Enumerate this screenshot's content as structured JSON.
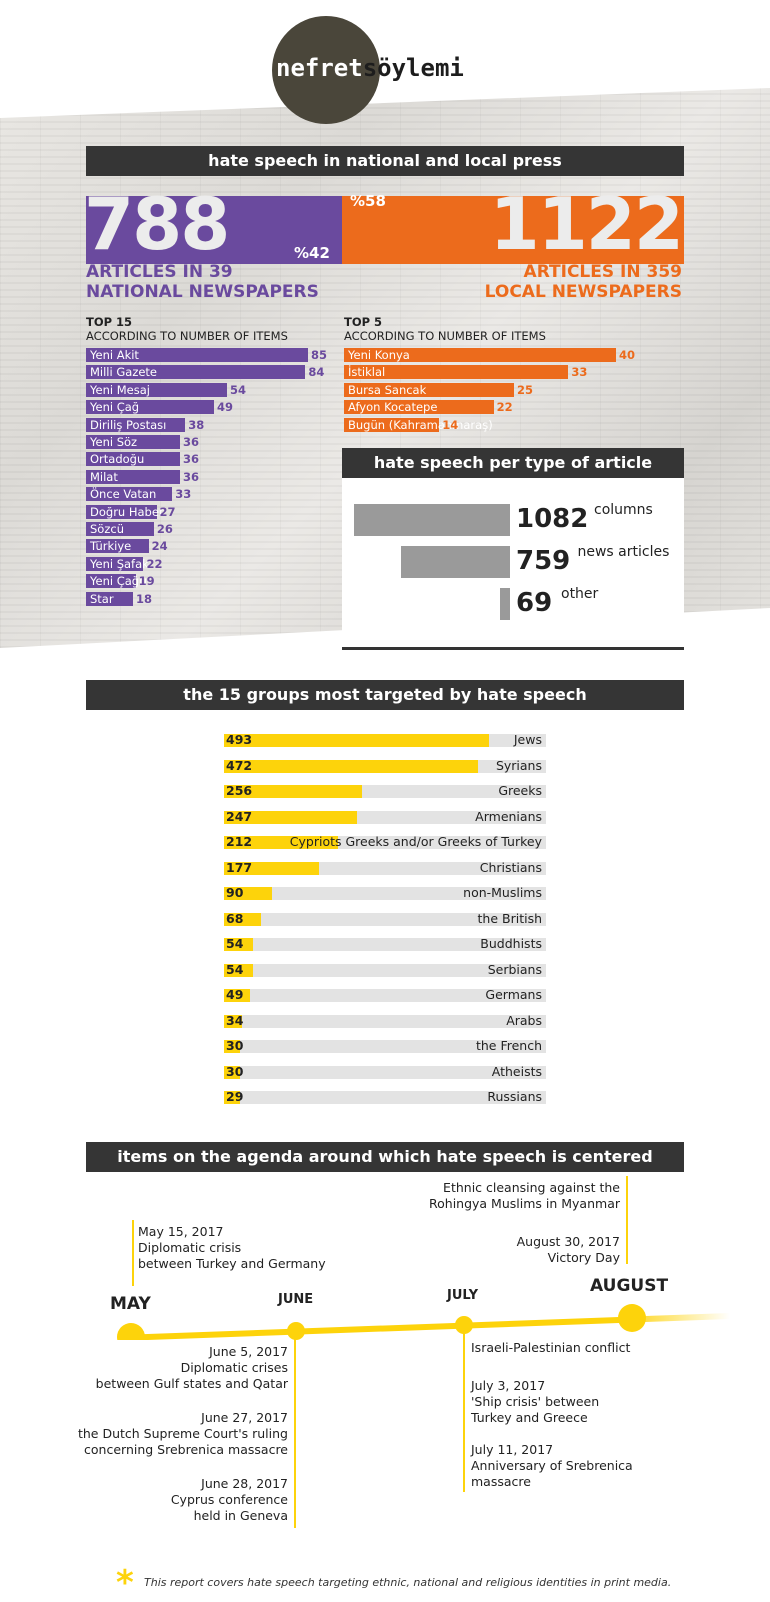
{
  "logo": {
    "part1": "nefret",
    "part2": "söylemi"
  },
  "section1": {
    "title": "hate speech in national and local press",
    "national": {
      "count": "788",
      "percent": "%42",
      "subtitle_line1": "ARTICLES IN 39",
      "subtitle_line2": "NATIONAL NEWSPAPERS",
      "top_label": "TOP 15",
      "top_sub": "ACCORDING TO NUMBER OF ITEMS",
      "items": [
        {
          "name": "Yeni Akit",
          "value": "85",
          "n": 85
        },
        {
          "name": "Milli Gazete",
          "value": "84",
          "n": 84
        },
        {
          "name": "Yeni Mesaj",
          "value": "54",
          "n": 54
        },
        {
          "name": "Yeni Çağ",
          "value": "49",
          "n": 49
        },
        {
          "name": "Diriliş Postası",
          "value": "38",
          "n": 38
        },
        {
          "name": "Yeni Söz",
          "value": "36",
          "n": 36
        },
        {
          "name": "Ortadoğu",
          "value": "36",
          "n": 36
        },
        {
          "name": "Milat",
          "value": "36",
          "n": 36
        },
        {
          "name": "Önce Vatan",
          "value": "33",
          "n": 33
        },
        {
          "name": "Doğru Haber",
          "value": "27",
          "n": 27
        },
        {
          "name": "Sözcü",
          "value": "26",
          "n": 26
        },
        {
          "name": "Türkiye",
          "value": "24",
          "n": 24
        },
        {
          "name": "Yeni Şafak",
          "value": "22",
          "n": 22
        },
        {
          "name": "Yeni Çağrı",
          "value": "19",
          "n": 19
        },
        {
          "name": "Star",
          "value": "18",
          "n": 18
        }
      ]
    },
    "local": {
      "count": "1122",
      "percent": "%58",
      "subtitle_line1": "ARTICLES IN 359",
      "subtitle_line2": "LOCAL NEWSPAPERS",
      "top_label": "TOP 5",
      "top_sub": "ACCORDING TO NUMBER OF ITEMS",
      "items": [
        {
          "name": "Yeni Konya",
          "value": "40",
          "n": 40
        },
        {
          "name": "İstiklal",
          "value": "33",
          "n": 33
        },
        {
          "name": "Bursa Sancak",
          "value": "25",
          "n": 25
        },
        {
          "name": "Afyon Kocatepe",
          "value": "22",
          "n": 22
        },
        {
          "name": "Bugün (Kahramanmaraş)",
          "value": "14",
          "n": 14
        }
      ]
    },
    "per_type": {
      "title": "hate speech per type of article",
      "items": [
        {
          "value": "1082",
          "label": "columns",
          "n": 1082
        },
        {
          "value": "759",
          "label": "news articles",
          "n": 759
        },
        {
          "value": "69",
          "label": "other",
          "n": 69
        }
      ]
    }
  },
  "section2": {
    "title": "the 15 groups most targeted by hate speech",
    "groups": [
      {
        "value": "493",
        "name": "Jews",
        "n": 493
      },
      {
        "value": "472",
        "name": "Syrians",
        "n": 472
      },
      {
        "value": "256",
        "name": "Greeks",
        "n": 256
      },
      {
        "value": "247",
        "name": "Armenians",
        "n": 247
      },
      {
        "value": "212",
        "name": "Cypriots Greeks and/or Greeks of Turkey",
        "n": 212
      },
      {
        "value": "177",
        "name": "Christians",
        "n": 177
      },
      {
        "value": "90",
        "name": "non-Muslims",
        "n": 90
      },
      {
        "value": "68",
        "name": "the British",
        "n": 68
      },
      {
        "value": "54",
        "name": "Buddhists",
        "n": 54
      },
      {
        "value": "54",
        "name": "Serbians",
        "n": 54
      },
      {
        "value": "49",
        "name": "Germans",
        "n": 49
      },
      {
        "value": "34",
        "name": "Arabs",
        "n": 34
      },
      {
        "value": "30",
        "name": "the French",
        "n": 30
      },
      {
        "value": "30",
        "name": "Atheists",
        "n": 30
      },
      {
        "value": "29",
        "name": "Russians",
        "n": 29
      }
    ]
  },
  "section3": {
    "title": "items on the agenda around which hate speech is centered",
    "months": {
      "may": "MAY",
      "june": "JUNE",
      "july": "JULY",
      "august": "AUGUST"
    },
    "may_event": {
      "date": "May 15, 2017",
      "line1": "Diplomatic crisis",
      "line2": "between Turkey and Germany"
    },
    "august_events": {
      "e1_line1": "Ethnic cleansing against the",
      "e1_line2": "Rohingya Muslims in Myanmar",
      "e2_date": "August 30, 2017",
      "e2_line1": "Victory Day"
    },
    "june_events": {
      "e1_date": "June 5, 2017",
      "e1_line1": "Diplomatic crises",
      "e1_line2": "between Gulf states and Qatar",
      "e2_date": "June 27, 2017",
      "e2_line1": "the Dutch Supreme Court's ruling",
      "e2_line2": "concerning Srebrenica massacre",
      "e3_date": "June 28, 2017",
      "e3_line1": "Cyprus conference",
      "e3_line2": "held in Geneva"
    },
    "july_events": {
      "e1_line1": "Israeli-Palestinian conflict",
      "e2_date": "July 3, 2017",
      "e2_line1": "'Ship crisis' between",
      "e2_line2": "Turkey and Greece",
      "e3_date": "July 11, 2017",
      "e3_line1": "Anniversary of Srebrenica",
      "e3_line2": "massacre"
    }
  },
  "footer": {
    "star": "*",
    "note": "This report covers hate speech targeting ethnic, national and religious identities in print media."
  },
  "colors": {
    "purple": "#6a4a9e",
    "orange": "#ec6b1c",
    "yellow": "#fdd30b",
    "dark": "#353535"
  }
}
